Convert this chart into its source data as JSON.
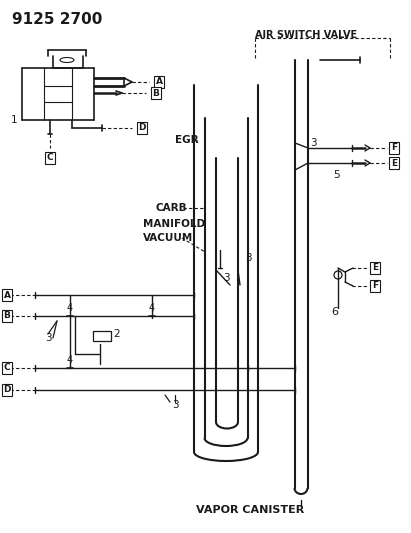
{
  "title": "9125 2700",
  "bg": "#ffffff",
  "lc": "#1a1a1a",
  "figsize": [
    4.11,
    5.33
  ],
  "dpi": 100,
  "text": {
    "part_number": "9125 2700",
    "air_switch_valve": "AIR SWITCH VALVE",
    "egr": "EGR",
    "carb": "CARB",
    "manifold_vacuum_1": "MANIFOLD",
    "manifold_vacuum_2": "VACUUM",
    "vapor_canister": "VAPOR CANISTER"
  },
  "connectors": [
    "A",
    "B",
    "C",
    "D",
    "E",
    "F"
  ]
}
